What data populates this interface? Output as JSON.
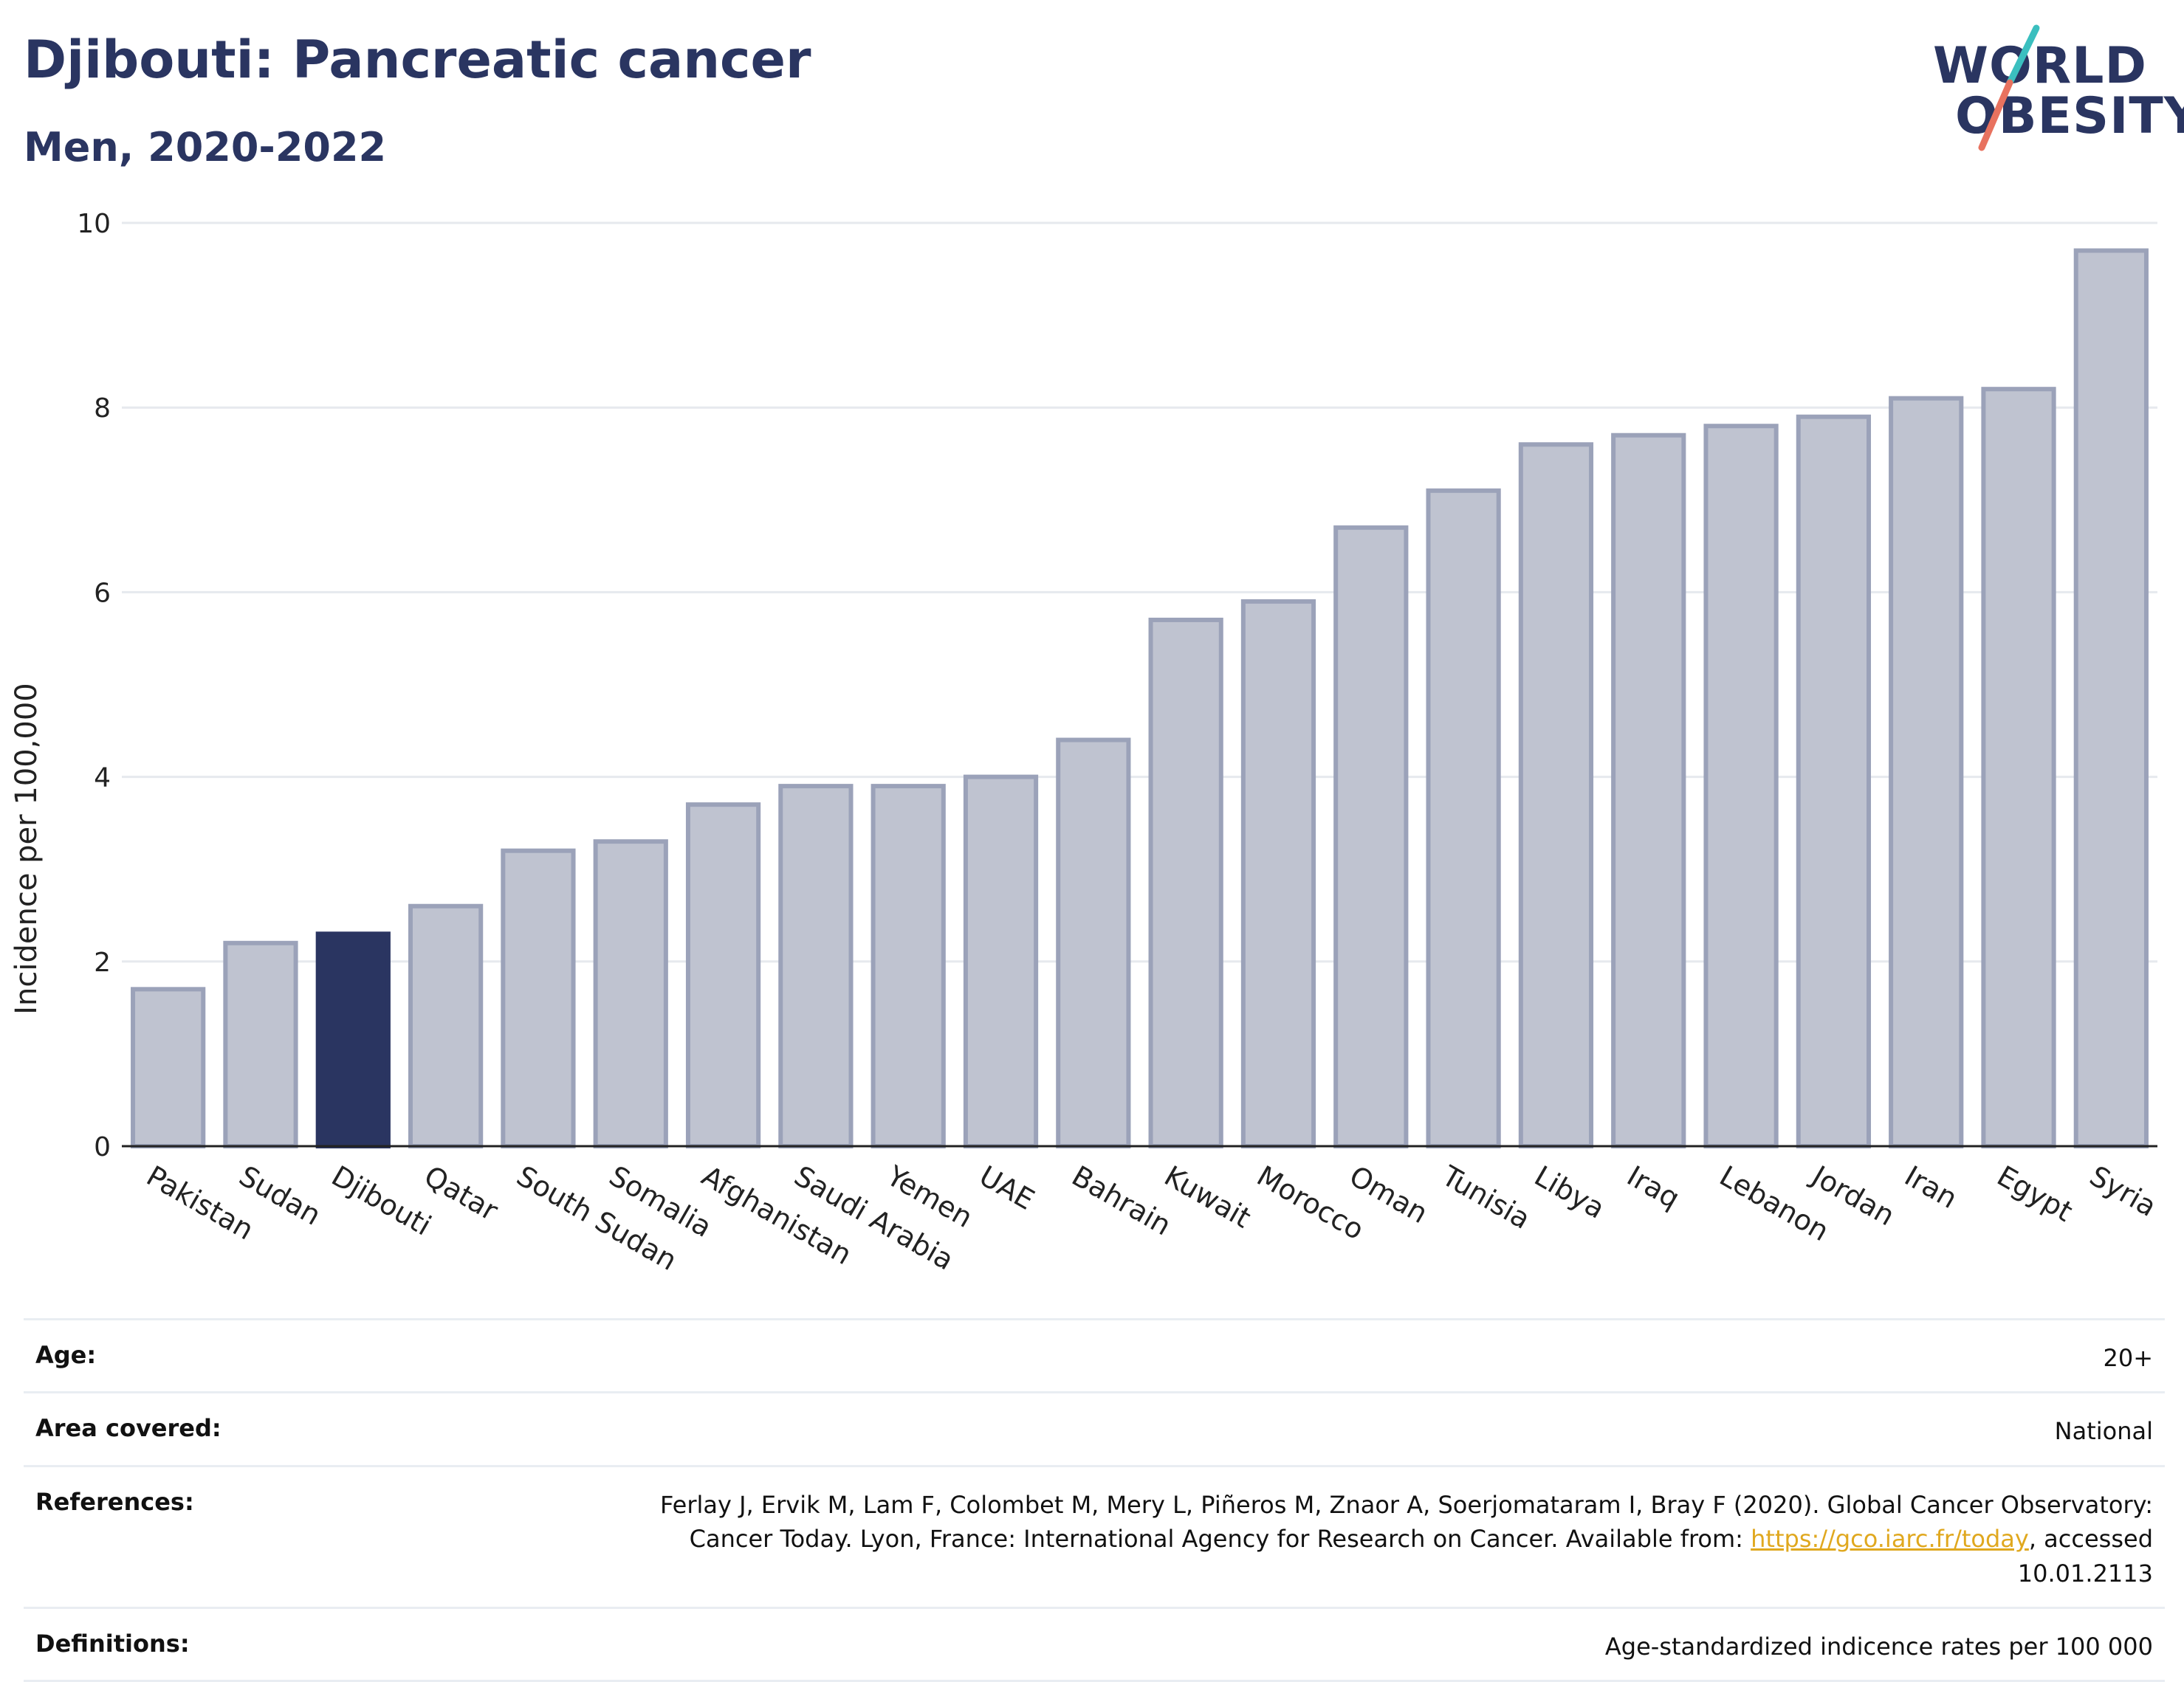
{
  "header": {
    "title": "Djibouti: Pancreatic cancer",
    "subtitle": "Men, 2020-2022"
  },
  "logo": {
    "line1": "WORLD",
    "line2": "OBESITY",
    "colors": {
      "text": "#2a3561",
      "slash_top": "#3bbfbf",
      "slash_bottom": "#e8725f"
    }
  },
  "colors": {
    "highlight": "#2a3561",
    "bar_fill": "#bfc3d0",
    "bar_stroke": "#9ba2b9",
    "grid": "#e6e9ee",
    "axis": "#222222"
  },
  "chart_data": {
    "type": "bar",
    "title": "Djibouti: Pancreatic cancer",
    "subtitle": "Men, 2020-2022",
    "xlabel": "",
    "ylabel": "Incidence per 100,000",
    "ylim": [
      0,
      10
    ],
    "yticks": [
      0,
      2,
      4,
      6,
      8,
      10
    ],
    "grid": true,
    "highlight_category": "Djibouti",
    "categories": [
      "Pakistan",
      "Sudan",
      "Djibouti",
      "Qatar",
      "South Sudan",
      "Somalia",
      "Afghanistan",
      "Saudi Arabia",
      "Yemen",
      "UAE",
      "Bahrain",
      "Kuwait",
      "Morocco",
      "Oman",
      "Tunisia",
      "Libya",
      "Iraq",
      "Lebanon",
      "Jordan",
      "Iran",
      "Egypt",
      "Syria"
    ],
    "values": [
      1.7,
      2.2,
      2.3,
      2.6,
      3.2,
      3.3,
      3.7,
      3.9,
      3.9,
      4.0,
      4.4,
      5.7,
      5.9,
      6.7,
      7.1,
      7.6,
      7.7,
      7.8,
      7.9,
      8.1,
      8.2,
      9.7
    ]
  },
  "info": {
    "age_label": "Age:",
    "age_value": "20+",
    "area_label": "Area covered:",
    "area_value": "National",
    "references_label": "References:",
    "references_text_1": "Ferlay J, Ervik M, Lam F, Colombet M, Mery L, Piñeros M, Znaor A, Soerjomataram I, Bray F (2020). Global Cancer Observatory: Cancer Today. Lyon, France: International Agency for Research on Cancer. Available from: ",
    "references_link": "https://gco.iarc.fr/today",
    "references_text_2": ", accessed 10.01.2113",
    "definitions_label": "Definitions:",
    "definitions_value": "Age-standardized indicence rates per 100 000"
  }
}
